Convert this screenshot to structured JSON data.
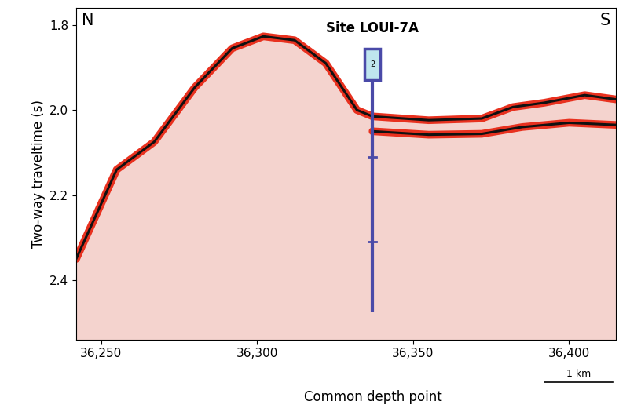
{
  "chart_data": {
    "type": "seismic",
    "xlabel": "Common depth point",
    "ylabel": "Two-way traveltime (s)",
    "xlim": [
      36242,
      36415
    ],
    "ylim": [
      2.54,
      1.76
    ],
    "xticks": [
      {
        "value": 36250,
        "label": "36,250"
      },
      {
        "value": 36300,
        "label": "36,300"
      },
      {
        "value": 36350,
        "label": "36,350"
      },
      {
        "value": 36400,
        "label": "36,400"
      }
    ],
    "yticks": [
      1.8,
      2.0,
      2.2,
      2.4
    ],
    "corner_labels": [
      "N",
      "S"
    ],
    "series": [
      {
        "color": "#111111",
        "x": [
          36242,
          36255,
          36267,
          36280,
          36292,
          36302,
          36312,
          36322,
          36332,
          36337,
          36355,
          36372,
          36382,
          36392,
          36405,
          36415
        ],
        "values": [
          2.35,
          2.14,
          2.075,
          1.947,
          1.855,
          1.827,
          1.836,
          1.89,
          2.0,
          2.015,
          2.024,
          2.02,
          1.993,
          1.983,
          1.965,
          1.975
        ]
      },
      {
        "color": "#111111",
        "x": [
          36337,
          36355,
          36372,
          36385,
          36400,
          36415
        ],
        "values": [
          2.05,
          2.058,
          2.056,
          2.04,
          2.03,
          2.035
        ]
      }
    ],
    "fill_color": "#f4d3ce",
    "color": "#e8311f",
    "site": {
      "label": "Site LOUI-7A",
      "box_label": "2",
      "cdp": 36337,
      "box_top": 1.855,
      "box_bottom": 1.93,
      "bottom": 2.47,
      "markers": [
        2.11,
        2.31
      ],
      "color": "#4a4aa8"
    },
    "scale_bar": {
      "label": "1 km",
      "start": 36392,
      "end": 36414
    }
  }
}
